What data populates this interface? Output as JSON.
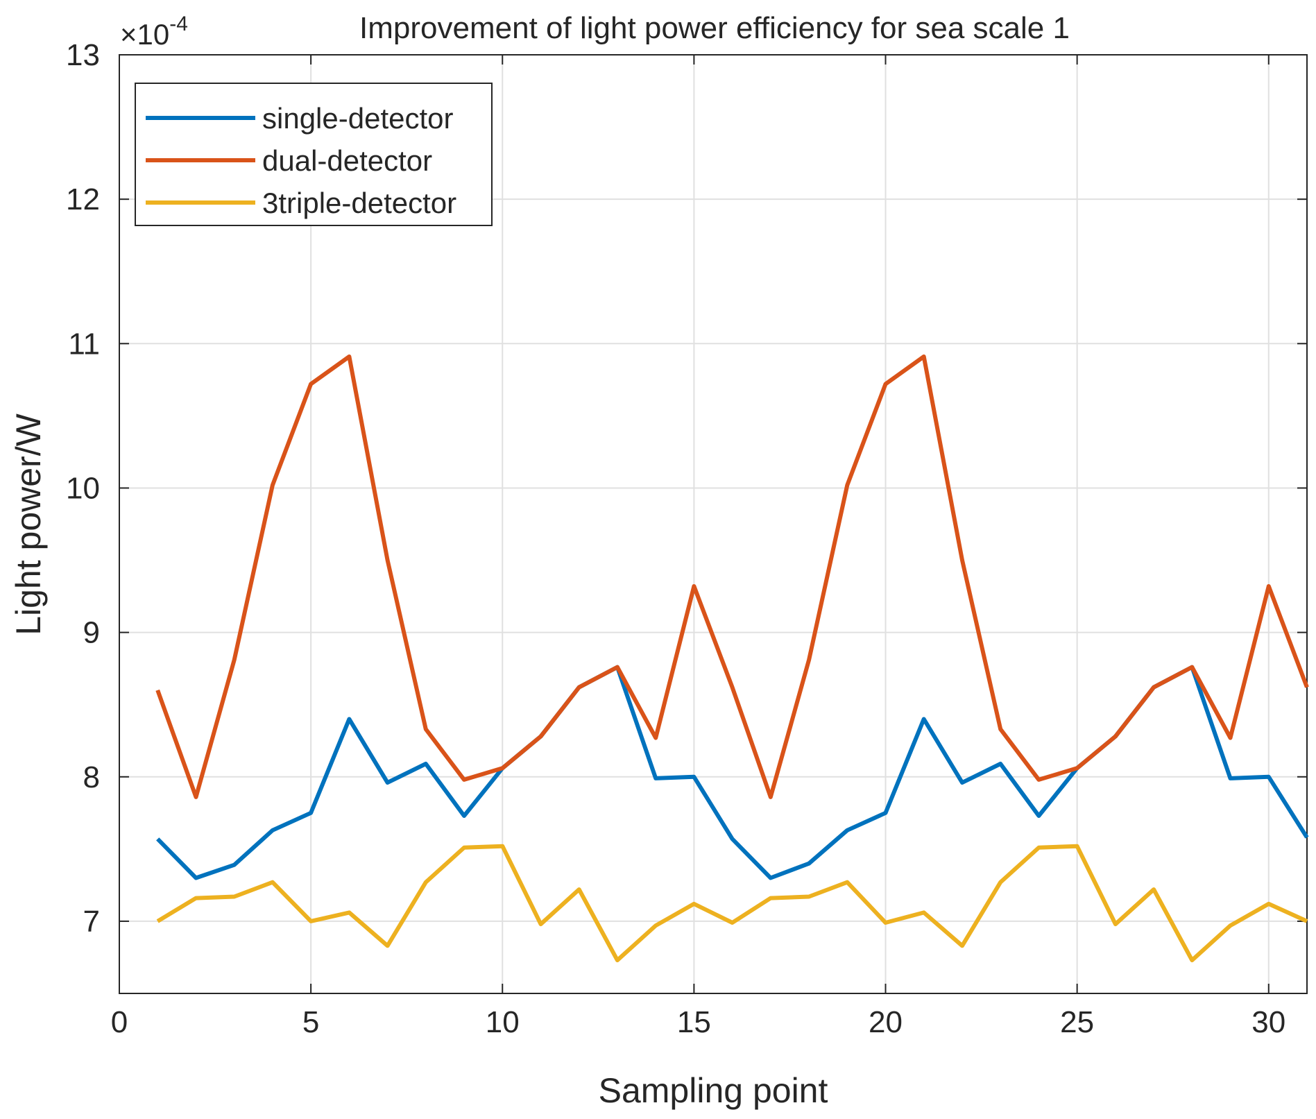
{
  "chart_data": {
    "type": "line",
    "title": "Improvement of light power efficiency for sea scale 1",
    "xlabel": "Sampling point",
    "ylabel": "Light power/W",
    "y_exponent_label": "×10",
    "y_exponent_power": "-4",
    "xlim": [
      0,
      31
    ],
    "ylim": [
      6.5,
      13
    ],
    "xticks": [
      0,
      5,
      10,
      15,
      20,
      25,
      30
    ],
    "yticks": [
      7,
      8,
      9,
      10,
      11,
      12,
      13
    ],
    "grid": true,
    "legend_position": "top-left",
    "x": [
      1,
      2,
      3,
      4,
      5,
      6,
      7,
      8,
      9,
      10,
      11,
      12,
      13,
      14,
      15,
      16,
      17,
      18,
      19,
      20,
      21,
      22,
      23,
      24,
      25,
      26,
      27,
      28,
      29,
      30,
      31
    ],
    "series": [
      {
        "name": "single-detector",
        "color": "#0072BD",
        "values": [
          7.57,
          7.3,
          7.39,
          7.63,
          7.75,
          8.4,
          7.96,
          8.09,
          7.73,
          8.06,
          8.28,
          8.62,
          8.76,
          7.99,
          8.0,
          7.57,
          7.3,
          7.4,
          7.63,
          7.75,
          8.4,
          7.96,
          8.09,
          7.73,
          8.06,
          8.28,
          8.62,
          8.76,
          7.99,
          8.0,
          7.58
        ]
      },
      {
        "name": "dual-detector",
        "color": "#D95319",
        "values": [
          8.6,
          7.86,
          8.81,
          10.02,
          10.72,
          10.91,
          9.5,
          8.33,
          7.98,
          8.06,
          8.28,
          8.62,
          8.76,
          8.27,
          9.32,
          8.62,
          7.86,
          8.81,
          10.02,
          10.72,
          10.91,
          9.5,
          8.33,
          7.98,
          8.06,
          8.28,
          8.62,
          8.76,
          8.27,
          9.32,
          8.62
        ]
      },
      {
        "name": "3triple-detector",
        "color": "#EDB120",
        "values": [
          7.0,
          7.16,
          7.17,
          7.27,
          7.0,
          7.06,
          6.83,
          7.27,
          7.51,
          7.52,
          6.98,
          7.22,
          6.73,
          6.97,
          7.12,
          6.99,
          7.16,
          7.17,
          7.27,
          6.99,
          7.06,
          6.83,
          7.27,
          7.51,
          7.52,
          6.98,
          7.22,
          6.73,
          6.97,
          7.12,
          7.0
        ]
      }
    ]
  }
}
